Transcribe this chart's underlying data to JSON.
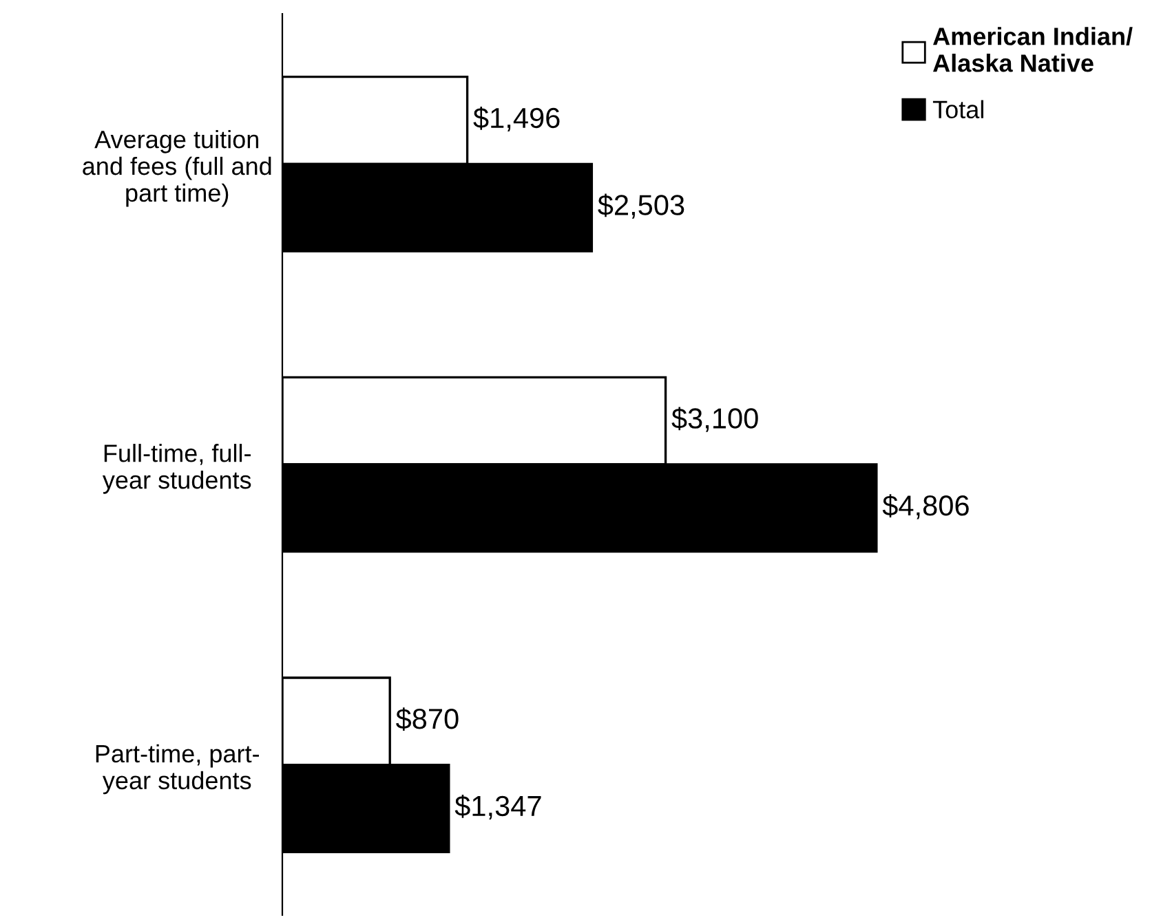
{
  "chart_data": {
    "type": "bar",
    "orientation": "horizontal",
    "categories": [
      "Average tuition\nand fees (full and\npart time)",
      "Full-time, full-\nyear students",
      "Part-time, part-\nyear students"
    ],
    "series": [
      {
        "name": "American Indian/\nAlaska Native",
        "color": "#ffffff",
        "values": [
          1496,
          3100,
          870
        ],
        "value_labels": [
          "$1,496",
          "$3,100",
          "$870"
        ]
      },
      {
        "name": "Total",
        "color": "#000000",
        "values": [
          2503,
          4806,
          1347
        ],
        "value_labels": [
          "$2,503",
          "$4,806",
          "$1,347"
        ]
      }
    ],
    "tick_labels": "y",
    "legend": "top right",
    "grid": false
  }
}
